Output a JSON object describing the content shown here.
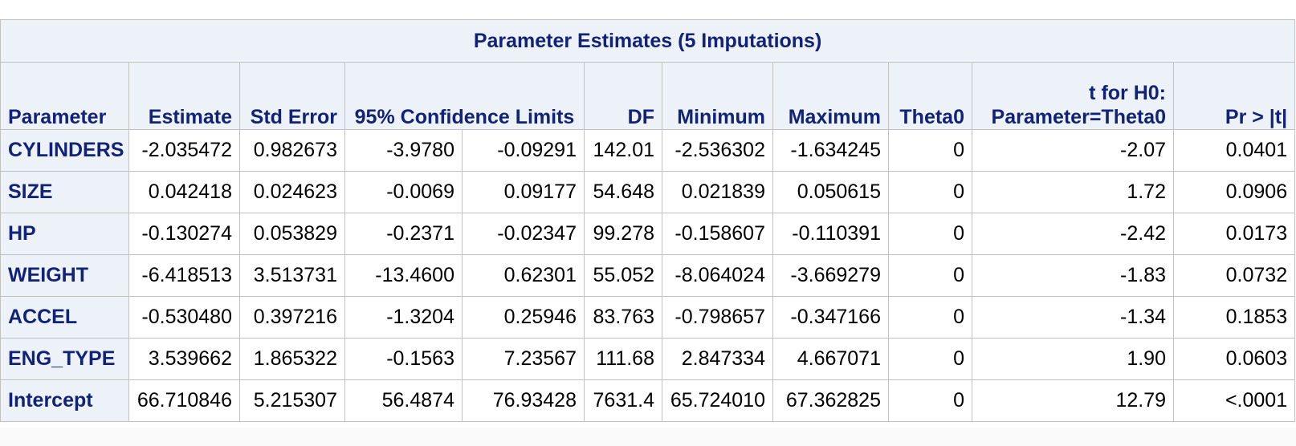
{
  "table": {
    "title": "Parameter Estimates (5 Imputations)",
    "headers": {
      "parameter": "Parameter",
      "estimate": "Estimate",
      "std_error": "Std Error",
      "conf_limits": "95% Confidence Limits",
      "df": "DF",
      "minimum": "Minimum",
      "maximum": "Maximum",
      "theta0": "Theta0",
      "t_line1": "t for H0:",
      "t_line2": "Parameter=Theta0",
      "pr": "Pr > |t|"
    },
    "rows": [
      {
        "parameter": "CYLINDERS",
        "estimate": "-2.035472",
        "std_error": "0.982673",
        "lower": "-3.9780",
        "upper": "-0.09291",
        "df": "142.01",
        "minimum": "-2.536302",
        "maximum": "-1.634245",
        "theta0": "0",
        "t": "-2.07",
        "pr": "0.0401"
      },
      {
        "parameter": "SIZE",
        "estimate": "0.042418",
        "std_error": "0.024623",
        "lower": "-0.0069",
        "upper": "0.09177",
        "df": "54.648",
        "minimum": "0.021839",
        "maximum": "0.050615",
        "theta0": "0",
        "t": "1.72",
        "pr": "0.0906"
      },
      {
        "parameter": "HP",
        "estimate": "-0.130274",
        "std_error": "0.053829",
        "lower": "-0.2371",
        "upper": "-0.02347",
        "df": "99.278",
        "minimum": "-0.158607",
        "maximum": "-0.110391",
        "theta0": "0",
        "t": "-2.42",
        "pr": "0.0173"
      },
      {
        "parameter": "WEIGHT",
        "estimate": "-6.418513",
        "std_error": "3.513731",
        "lower": "-13.4600",
        "upper": "0.62301",
        "df": "55.052",
        "minimum": "-8.064024",
        "maximum": "-3.669279",
        "theta0": "0",
        "t": "-1.83",
        "pr": "0.0732"
      },
      {
        "parameter": "ACCEL",
        "estimate": "-0.530480",
        "std_error": "0.397216",
        "lower": "-1.3204",
        "upper": "0.25946",
        "df": "83.763",
        "minimum": "-0.798657",
        "maximum": "-0.347166",
        "theta0": "0",
        "t": "-1.34",
        "pr": "0.1853"
      },
      {
        "parameter": "ENG_TYPE",
        "estimate": "3.539662",
        "std_error": "1.865322",
        "lower": "-0.1563",
        "upper": "7.23567",
        "df": "111.68",
        "minimum": "2.847334",
        "maximum": "4.667071",
        "theta0": "0",
        "t": "1.90",
        "pr": "0.0603"
      },
      {
        "parameter": "Intercept",
        "estimate": "66.710846",
        "std_error": "5.215307",
        "lower": "56.4874",
        "upper": "76.93428",
        "df": "7631.4",
        "minimum": "65.724010",
        "maximum": "67.362825",
        "theta0": "0",
        "t": "12.79",
        "pr": "<.0001"
      }
    ]
  }
}
